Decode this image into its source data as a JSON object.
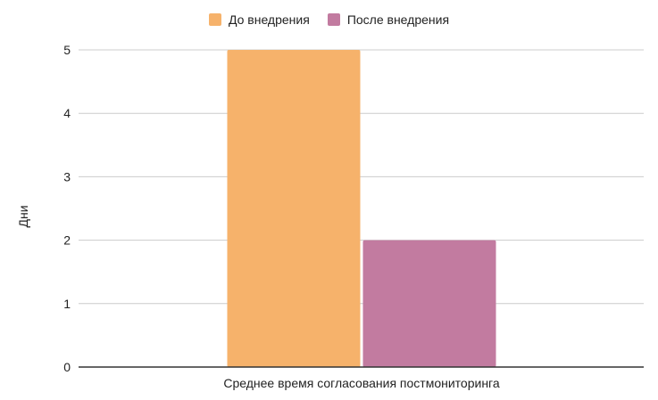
{
  "chart_data": {
    "type": "bar",
    "categories": [
      "Среднее время согласования постмониторинга"
    ],
    "series": [
      {
        "name": "До внедрения",
        "values": [
          5
        ],
        "color": "#f6b26b"
      },
      {
        "name": "После внедрения",
        "values": [
          2
        ],
        "color": "#c27ba0"
      }
    ],
    "xlabel": "",
    "ylabel": "Дни",
    "ylim": [
      0,
      5
    ],
    "yticks": [
      "0",
      "1",
      "2",
      "3",
      "4",
      "5"
    ],
    "grid": true,
    "legend_position": "top"
  }
}
